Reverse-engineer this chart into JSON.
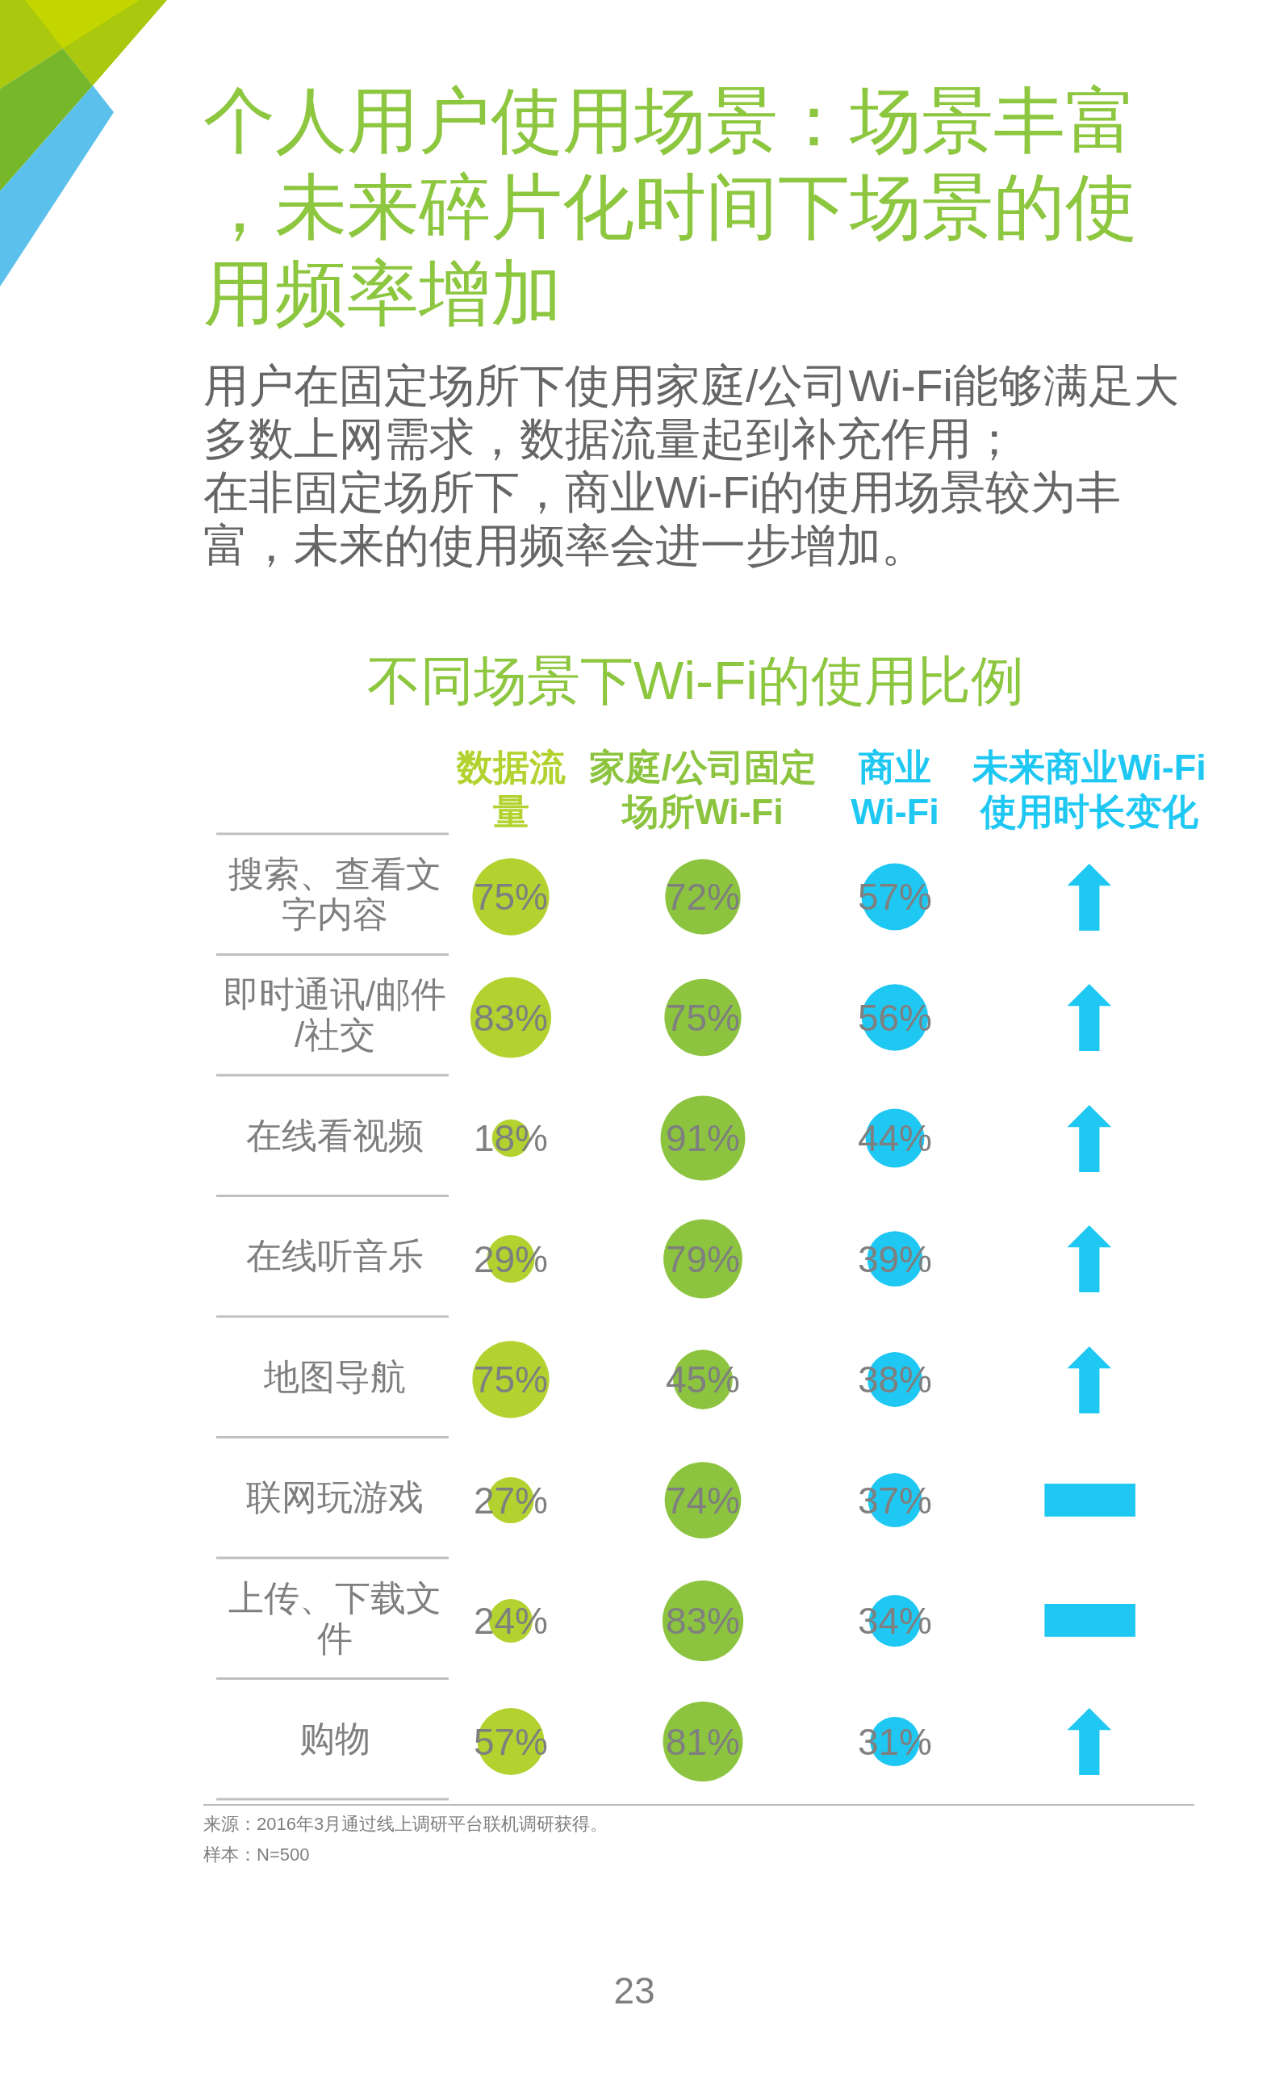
{
  "chart_data": {
    "type": "heatmap",
    "title": "个人用户使用场景：场景丰富，未来碎片化时间下场景的使用频率增加",
    "subtitle": "不同场景下Wi-Fi的使用比例",
    "categories": [
      "数据流量",
      "家庭/公司固定场所Wi-Fi",
      "商业Wi-Fi",
      "未来商业Wi-Fi使用时长变化"
    ],
    "y_categories": [
      "搜索、查看文字内容",
      "即时通讯/邮件/社交",
      "在线看视频",
      "在线听音乐",
      "地图导航",
      "联网玩游戏",
      "上传、下载文件",
      "购物"
    ],
    "cells": [
      [
        75,
        72,
        57,
        null
      ],
      [
        83,
        75,
        56,
        null
      ],
      [
        18,
        91,
        44,
        null
      ],
      [
        29,
        79,
        39,
        null
      ],
      [
        75,
        45,
        38,
        null
      ],
      [
        27,
        74,
        37,
        null
      ],
      [
        24,
        83,
        34,
        null
      ],
      [
        57,
        81,
        31,
        null
      ]
    ],
    "cell_labels": [
      [
        "75%",
        "72%",
        "57%",
        "⬆"
      ],
      [
        "83%",
        "75%",
        "56%",
        "⬆"
      ],
      [
        "18%",
        "91%",
        "44%",
        "⬆"
      ],
      [
        "29%",
        "79%",
        "39%",
        "⬆"
      ],
      [
        "75%",
        "45%",
        "38%",
        "⬆"
      ],
      [
        "27%",
        "74%",
        "37%",
        "▬"
      ],
      [
        "24%",
        "83%",
        "34%",
        "▬"
      ],
      [
        "57%",
        "81%",
        "31%",
        "⬆"
      ]
    ],
    "colors": [
      "#b3d22f",
      "#8cc43f",
      "#1fc8f2",
      "#1fc8f2"
    ],
    "annotations": [
      "用户在固定场所下使用家庭/公司Wi-Fi能够满足大多数上网需求，数据流量起到补充作用；",
      "在非固定场所下，商业Wi-Fi的使用场景较为丰富，未来的使用频率会进一步增加。",
      "来源：2016年3月通过线上调研平台联机调研获得。",
      "样本：N=500",
      "23"
    ]
  }
}
